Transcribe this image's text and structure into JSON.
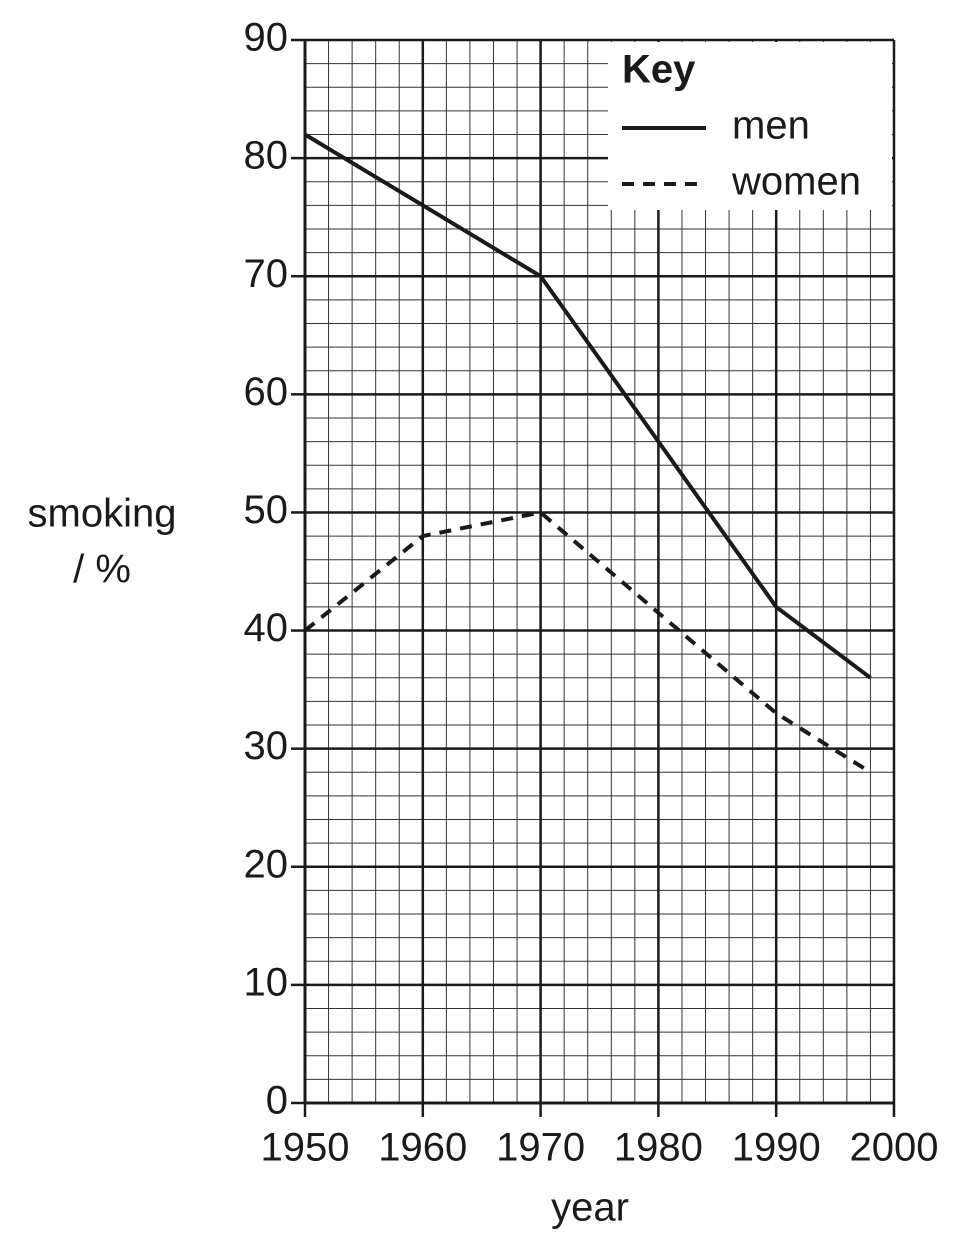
{
  "chart_data": {
    "type": "line",
    "xlabel": "year",
    "ylabel": [
      "smoking",
      "/ %"
    ],
    "legend_title": "Key",
    "legend": "upper right",
    "grid": true,
    "xlim": [
      1950,
      2000
    ],
    "xticks": [
      1950,
      1960,
      1970,
      1980,
      1990,
      2000
    ],
    "ylim": [
      0,
      90
    ],
    "yticks": [
      0,
      10,
      20,
      30,
      40,
      50,
      60,
      70,
      80,
      90
    ],
    "series": [
      {
        "name": "men",
        "color": "#1a1a1a",
        "dash": "solid",
        "x": [
          1950,
          1970,
          1990,
          1998
        ],
        "values": [
          82,
          70,
          42,
          36
        ]
      },
      {
        "name": "women",
        "color": "#1a1a1a",
        "dash": "dashed",
        "x": [
          1950,
          1960,
          1970,
          1990,
          1998
        ],
        "values": [
          40,
          48,
          50,
          33,
          28
        ]
      }
    ]
  }
}
